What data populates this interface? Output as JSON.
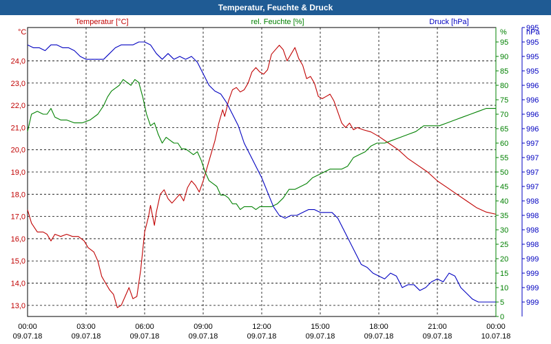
{
  "title": "Temperatur, Feuchte & Druck",
  "colors": {
    "temp": "#c00000",
    "hum": "#008000",
    "press": "#0000c0",
    "title_bg": "#1f5b94"
  },
  "chart_data": {
    "type": "line",
    "title": "Temperatur, Feuchte & Druck",
    "grid": true,
    "axes": {
      "temp": {
        "header": "Temperatur [°C]",
        "unit": "°C",
        "ylim": [
          12.5,
          25.5
        ],
        "ticks": [
          "13,0",
          "14,0",
          "15,0",
          "16,0",
          "17,0",
          "18,0",
          "19,0",
          "20,0",
          "21,0",
          "22,0",
          "23,0",
          "24,0"
        ]
      },
      "hum": {
        "header": "rel. Feuchte [%]",
        "unit": "%",
        "ylim": [
          0,
          100
        ],
        "ticks": [
          "0",
          "5",
          "10",
          "15",
          "20",
          "25",
          "30",
          "35",
          "40",
          "45",
          "50",
          "55",
          "60",
          "65",
          "70",
          "75",
          "80",
          "85",
          "90",
          "95"
        ]
      },
      "press": {
        "header": "Druck [hPa]",
        "unit": "hPa",
        "ticks": [
          "995",
          "995",
          "995",
          "995",
          "996",
          "996",
          "996",
          "996",
          "997",
          "997",
          "997",
          "997",
          "998",
          "998",
          "998",
          "998",
          "999",
          "999",
          "999",
          "999"
        ]
      }
    },
    "x_ticks": [
      {
        "time": "00:00",
        "date": "09.07.18"
      },
      {
        "time": "03:00",
        "date": "09.07.18"
      },
      {
        "time": "06:00",
        "date": "09.07.18"
      },
      {
        "time": "09:00",
        "date": "09.07.18"
      },
      {
        "time": "12:00",
        "date": "09.07.18"
      },
      {
        "time": "15:00",
        "date": "09.07.18"
      },
      {
        "time": "18:00",
        "date": "09.07.18"
      },
      {
        "time": "21:00",
        "date": "09.07.18"
      },
      {
        "time": "00:00",
        "date": "10.07.18"
      }
    ],
    "x_range_hours": [
      0,
      24
    ],
    "series": [
      {
        "name": "Temperatur [°C]",
        "axis": "temp",
        "color": "#c00000",
        "points": [
          [
            0,
            17.3
          ],
          [
            0.2,
            16.7
          ],
          [
            0.5,
            16.3
          ],
          [
            0.8,
            16.3
          ],
          [
            1.0,
            16.2
          ],
          [
            1.2,
            15.9
          ],
          [
            1.4,
            16.2
          ],
          [
            1.7,
            16.1
          ],
          [
            2.0,
            16.2
          ],
          [
            2.3,
            16.1
          ],
          [
            2.6,
            16.1
          ],
          [
            2.9,
            15.9
          ],
          [
            3.1,
            15.6
          ],
          [
            3.4,
            15.4
          ],
          [
            3.6,
            15.0
          ],
          [
            3.8,
            14.3
          ],
          [
            4.0,
            14.0
          ],
          [
            4.2,
            13.7
          ],
          [
            4.4,
            13.5
          ],
          [
            4.6,
            12.9
          ],
          [
            4.8,
            13.0
          ],
          [
            5.0,
            13.4
          ],
          [
            5.2,
            13.8
          ],
          [
            5.4,
            13.3
          ],
          [
            5.6,
            13.4
          ],
          [
            5.8,
            14.6
          ],
          [
            6.0,
            16.3
          ],
          [
            6.2,
            17.0
          ],
          [
            6.3,
            17.5
          ],
          [
            6.5,
            16.6
          ],
          [
            6.6,
            17.2
          ],
          [
            6.8,
            18.0
          ],
          [
            7.0,
            18.2
          ],
          [
            7.2,
            17.8
          ],
          [
            7.4,
            17.6
          ],
          [
            7.6,
            17.8
          ],
          [
            7.8,
            18.0
          ],
          [
            8.0,
            17.7
          ],
          [
            8.2,
            18.3
          ],
          [
            8.4,
            18.6
          ],
          [
            8.6,
            18.4
          ],
          [
            8.8,
            18.1
          ],
          [
            9.0,
            18.6
          ],
          [
            9.2,
            19.2
          ],
          [
            9.4,
            19.8
          ],
          [
            9.6,
            20.4
          ],
          [
            9.8,
            21.2
          ],
          [
            10.0,
            21.8
          ],
          [
            10.1,
            21.5
          ],
          [
            10.3,
            22.2
          ],
          [
            10.5,
            22.7
          ],
          [
            10.7,
            22.8
          ],
          [
            10.9,
            22.6
          ],
          [
            11.1,
            22.7
          ],
          [
            11.3,
            23.0
          ],
          [
            11.5,
            23.5
          ],
          [
            11.7,
            23.7
          ],
          [
            11.9,
            23.5
          ],
          [
            12.1,
            23.4
          ],
          [
            12.3,
            23.6
          ],
          [
            12.5,
            24.3
          ],
          [
            12.7,
            24.5
          ],
          [
            12.9,
            24.7
          ],
          [
            13.1,
            24.5
          ],
          [
            13.3,
            24.0
          ],
          [
            13.5,
            24.3
          ],
          [
            13.7,
            24.6
          ],
          [
            13.9,
            24.1
          ],
          [
            14.1,
            23.8
          ],
          [
            14.3,
            23.2
          ],
          [
            14.5,
            23.3
          ],
          [
            14.7,
            23.0
          ],
          [
            14.9,
            22.4
          ],
          [
            15.1,
            22.3
          ],
          [
            15.3,
            22.4
          ],
          [
            15.5,
            22.5
          ],
          [
            15.7,
            22.2
          ],
          [
            15.9,
            21.7
          ],
          [
            16.1,
            21.2
          ],
          [
            16.3,
            21.0
          ],
          [
            16.5,
            21.2
          ],
          [
            16.7,
            20.9
          ],
          [
            16.9,
            21.0
          ],
          [
            17.2,
            20.9
          ],
          [
            17.6,
            20.8
          ],
          [
            18.0,
            20.6
          ],
          [
            18.5,
            20.3
          ],
          [
            19.0,
            20.0
          ],
          [
            19.5,
            19.6
          ],
          [
            20.0,
            19.3
          ],
          [
            20.5,
            19.0
          ],
          [
            21.0,
            18.6
          ],
          [
            21.5,
            18.3
          ],
          [
            22.0,
            18.0
          ],
          [
            22.5,
            17.7
          ],
          [
            23.0,
            17.4
          ],
          [
            23.5,
            17.2
          ],
          [
            24.0,
            17.1
          ]
        ]
      },
      {
        "name": "rel. Feuchte [%]",
        "axis": "hum",
        "color": "#008000",
        "points": [
          [
            0,
            64
          ],
          [
            0.2,
            70
          ],
          [
            0.5,
            71
          ],
          [
            0.8,
            70
          ],
          [
            1.0,
            70
          ],
          [
            1.2,
            72
          ],
          [
            1.4,
            69
          ],
          [
            1.7,
            68
          ],
          [
            2.0,
            68
          ],
          [
            2.4,
            67
          ],
          [
            2.8,
            67
          ],
          [
            3.2,
            68
          ],
          [
            3.6,
            70
          ],
          [
            3.9,
            73
          ],
          [
            4.1,
            76
          ],
          [
            4.3,
            78
          ],
          [
            4.5,
            79
          ],
          [
            4.7,
            80
          ],
          [
            4.9,
            82
          ],
          [
            5.1,
            81
          ],
          [
            5.3,
            80
          ],
          [
            5.5,
            82
          ],
          [
            5.7,
            81
          ],
          [
            5.9,
            76
          ],
          [
            6.1,
            70
          ],
          [
            6.3,
            66
          ],
          [
            6.5,
            67
          ],
          [
            6.7,
            63
          ],
          [
            6.9,
            60
          ],
          [
            7.1,
            62
          ],
          [
            7.3,
            61
          ],
          [
            7.5,
            60
          ],
          [
            7.7,
            60
          ],
          [
            7.9,
            58
          ],
          [
            8.1,
            58
          ],
          [
            8.3,
            57
          ],
          [
            8.5,
            56
          ],
          [
            8.7,
            57
          ],
          [
            8.9,
            54
          ],
          [
            9.1,
            50
          ],
          [
            9.3,
            47
          ],
          [
            9.5,
            46
          ],
          [
            9.7,
            45
          ],
          [
            9.9,
            42
          ],
          [
            10.1,
            42
          ],
          [
            10.3,
            41
          ],
          [
            10.5,
            39
          ],
          [
            10.7,
            39
          ],
          [
            10.9,
            37
          ],
          [
            11.1,
            38
          ],
          [
            11.3,
            38
          ],
          [
            11.5,
            38
          ],
          [
            11.7,
            37
          ],
          [
            11.9,
            38
          ],
          [
            12.2,
            38
          ],
          [
            12.5,
            38
          ],
          [
            12.8,
            39
          ],
          [
            13.1,
            41
          ],
          [
            13.4,
            44
          ],
          [
            13.7,
            44
          ],
          [
            14.0,
            45
          ],
          [
            14.3,
            46
          ],
          [
            14.6,
            48
          ],
          [
            14.9,
            49
          ],
          [
            15.2,
            50
          ],
          [
            15.5,
            51
          ],
          [
            15.8,
            51
          ],
          [
            16.1,
            51
          ],
          [
            16.4,
            52
          ],
          [
            16.7,
            55
          ],
          [
            17.0,
            56
          ],
          [
            17.3,
            57
          ],
          [
            17.6,
            59
          ],
          [
            17.9,
            60
          ],
          [
            18.3,
            60
          ],
          [
            18.7,
            61
          ],
          [
            19.1,
            62
          ],
          [
            19.5,
            63
          ],
          [
            19.9,
            64
          ],
          [
            20.3,
            66
          ],
          [
            20.7,
            66
          ],
          [
            21.1,
            66
          ],
          [
            21.5,
            67
          ],
          [
            21.9,
            68
          ],
          [
            22.3,
            69
          ],
          [
            22.7,
            70
          ],
          [
            23.1,
            71
          ],
          [
            23.5,
            72
          ],
          [
            24.0,
            72
          ]
        ]
      },
      {
        "name": "Druck [hPa]",
        "axis": "press",
        "color": "#0000c0",
        "points": [
          [
            0,
            94
          ],
          [
            0.3,
            93
          ],
          [
            0.6,
            93
          ],
          [
            0.9,
            92
          ],
          [
            1.2,
            94
          ],
          [
            1.5,
            94
          ],
          [
            1.8,
            93
          ],
          [
            2.1,
            93
          ],
          [
            2.4,
            92
          ],
          [
            2.7,
            90
          ],
          [
            3.0,
            89
          ],
          [
            3.3,
            89
          ],
          [
            3.6,
            89
          ],
          [
            3.9,
            89
          ],
          [
            4.2,
            91
          ],
          [
            4.5,
            93
          ],
          [
            4.8,
            94
          ],
          [
            5.1,
            94
          ],
          [
            5.4,
            94
          ],
          [
            5.7,
            95
          ],
          [
            6.0,
            95
          ],
          [
            6.3,
            94
          ],
          [
            6.6,
            91
          ],
          [
            6.9,
            89
          ],
          [
            7.2,
            91
          ],
          [
            7.5,
            89
          ],
          [
            7.8,
            90
          ],
          [
            8.1,
            89
          ],
          [
            8.4,
            90
          ],
          [
            8.7,
            88
          ],
          [
            9.0,
            84
          ],
          [
            9.3,
            80
          ],
          [
            9.6,
            78
          ],
          [
            9.9,
            77
          ],
          [
            10.2,
            74
          ],
          [
            10.5,
            70
          ],
          [
            10.8,
            66
          ],
          [
            11.1,
            60
          ],
          [
            11.4,
            56
          ],
          [
            11.7,
            52
          ],
          [
            12.0,
            48
          ],
          [
            12.3,
            43
          ],
          [
            12.6,
            38
          ],
          [
            12.9,
            35
          ],
          [
            13.2,
            34
          ],
          [
            13.5,
            35
          ],
          [
            13.8,
            35
          ],
          [
            14.1,
            36
          ],
          [
            14.4,
            37
          ],
          [
            14.7,
            37
          ],
          [
            15.0,
            36
          ],
          [
            15.3,
            36
          ],
          [
            15.6,
            36
          ],
          [
            15.9,
            34
          ],
          [
            16.2,
            30
          ],
          [
            16.5,
            26
          ],
          [
            16.8,
            22
          ],
          [
            17.1,
            18
          ],
          [
            17.4,
            17
          ],
          [
            17.7,
            15
          ],
          [
            18.0,
            14
          ],
          [
            18.3,
            13
          ],
          [
            18.6,
            15
          ],
          [
            18.9,
            14
          ],
          [
            19.2,
            10
          ],
          [
            19.5,
            11
          ],
          [
            19.8,
            11
          ],
          [
            20.1,
            9
          ],
          [
            20.4,
            10
          ],
          [
            20.7,
            12
          ],
          [
            21.0,
            13
          ],
          [
            21.3,
            12
          ],
          [
            21.6,
            15
          ],
          [
            21.9,
            14
          ],
          [
            22.2,
            10
          ],
          [
            22.5,
            8
          ],
          [
            22.8,
            6
          ],
          [
            23.1,
            5
          ],
          [
            23.4,
            5
          ],
          [
            23.7,
            5
          ],
          [
            24.0,
            5
          ]
        ]
      }
    ]
  }
}
